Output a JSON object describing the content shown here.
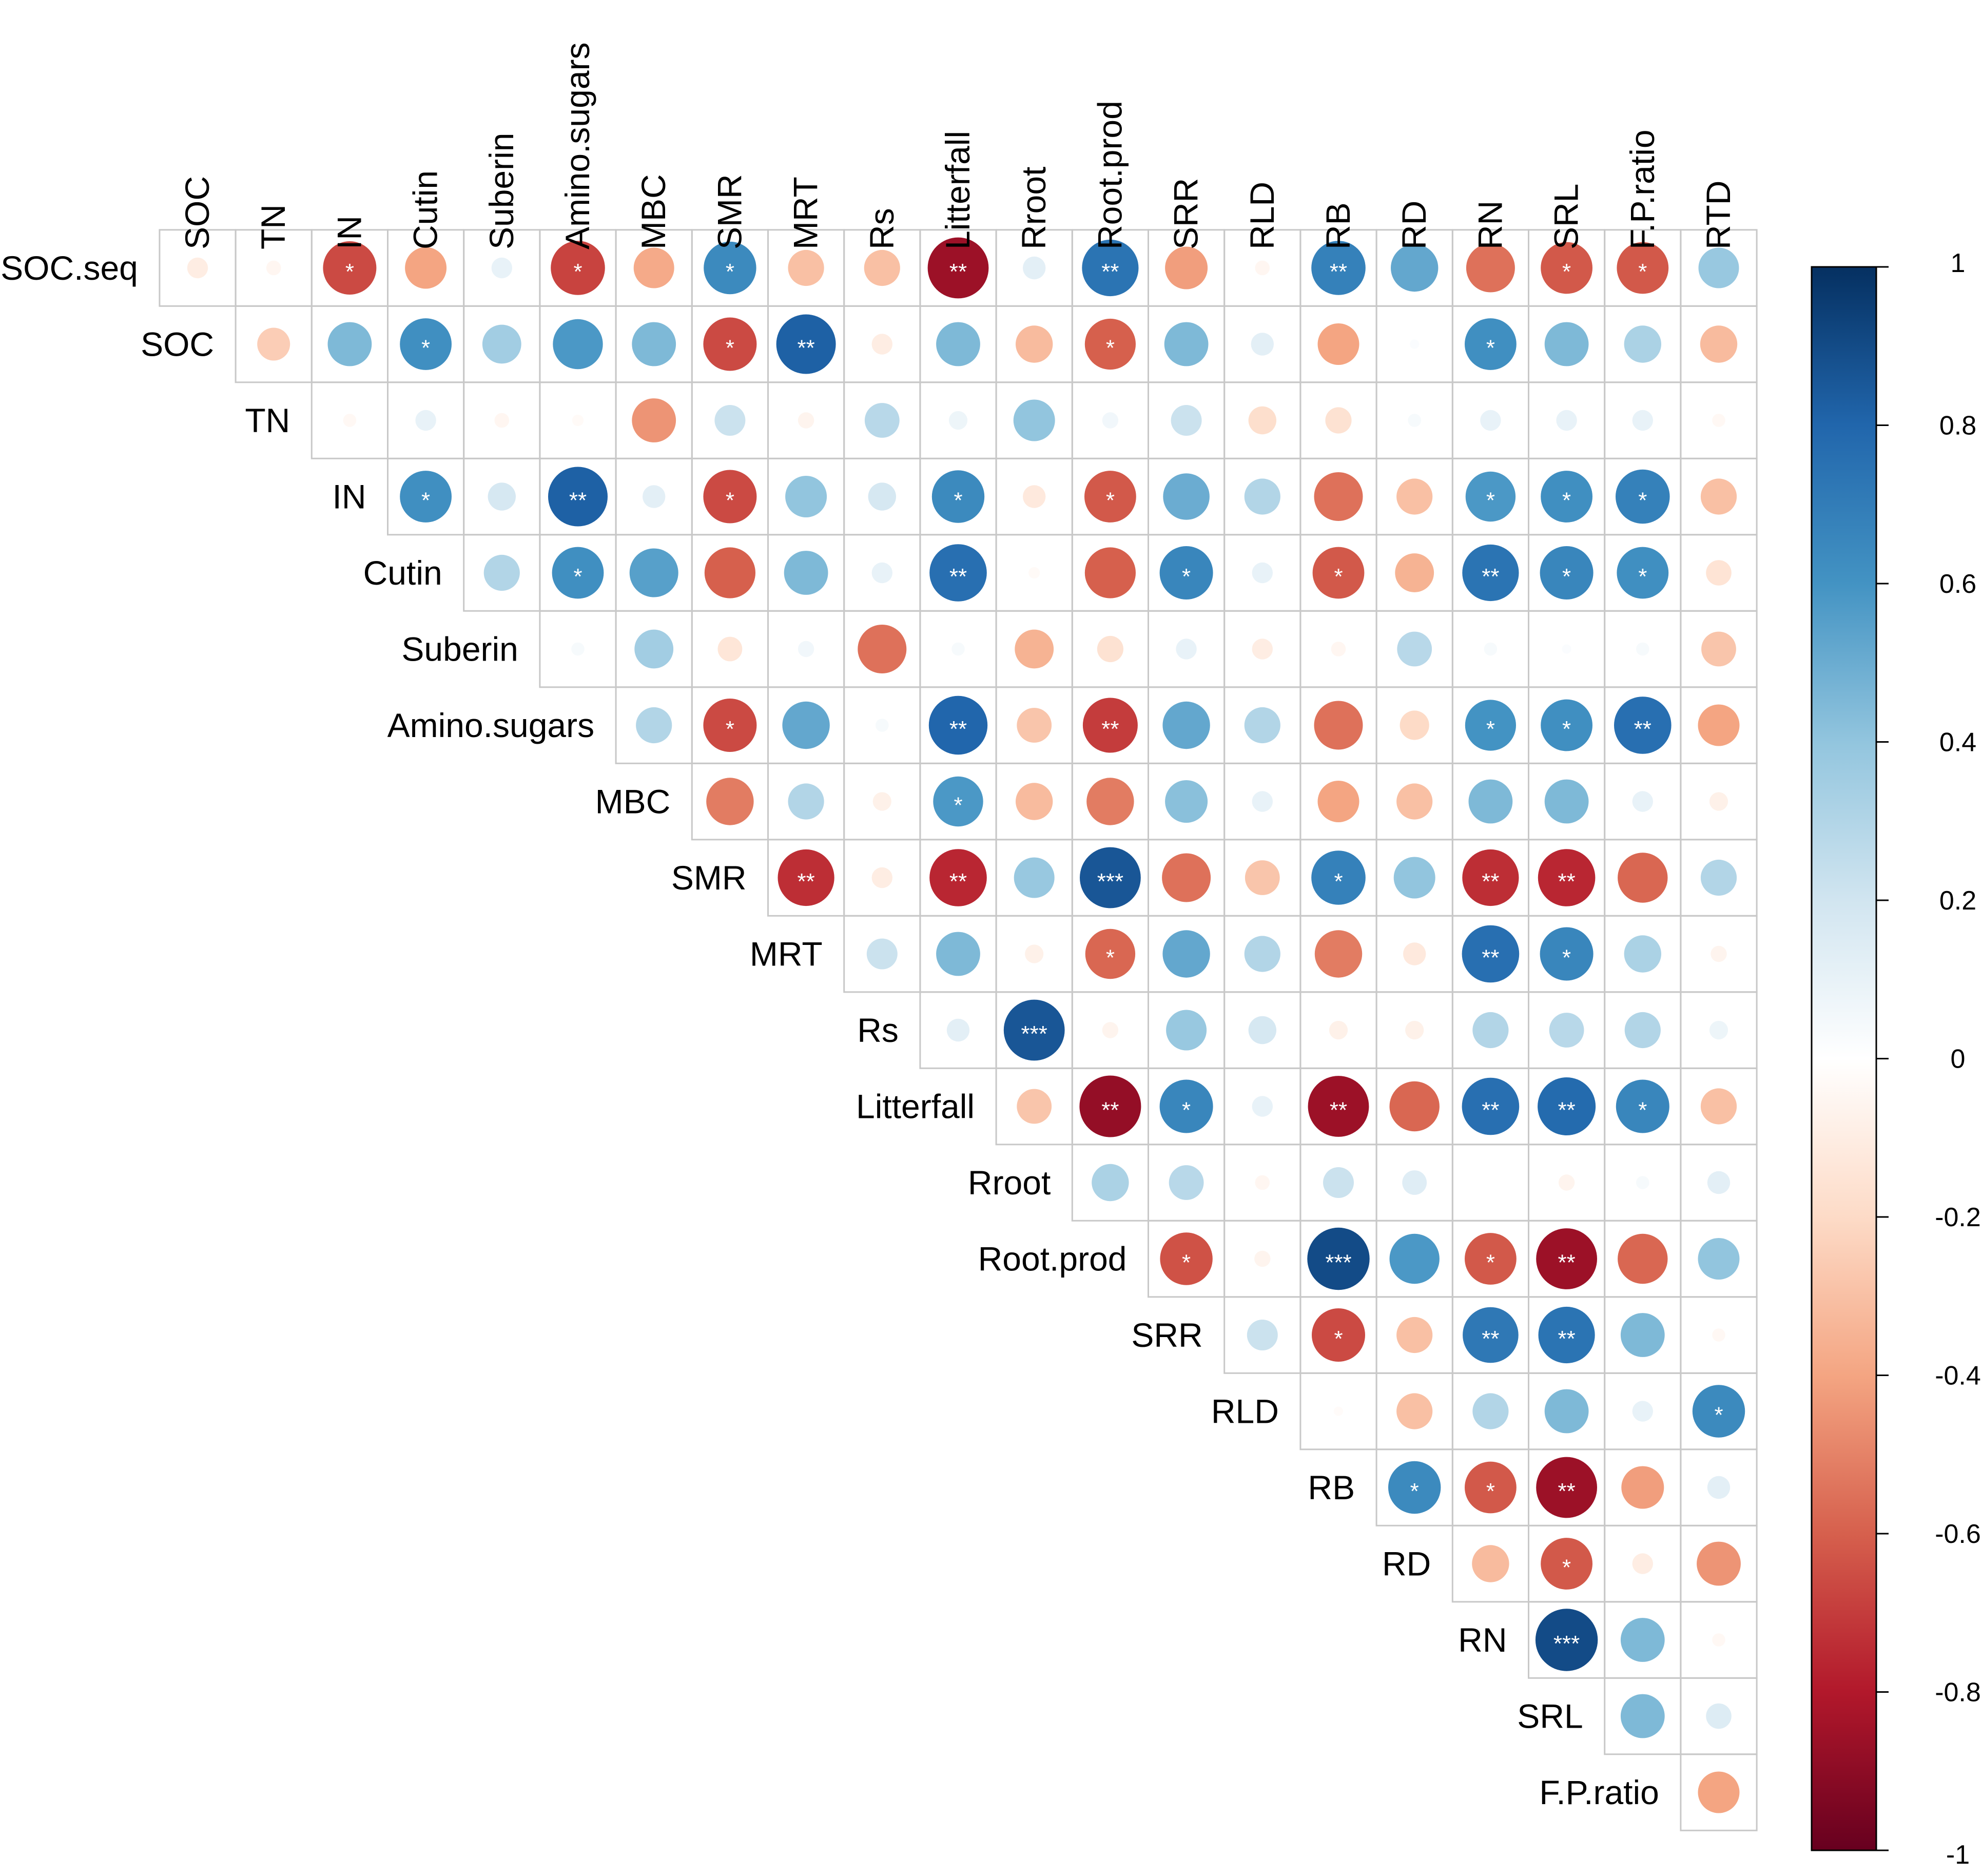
{
  "chart_data": {
    "type": "heatmap",
    "title": "",
    "shape": "upper-triangular correlation matrix (circle glyphs)",
    "rows": [
      "SOC.seq",
      "SOC",
      "TN",
      "IN",
      "Cutin",
      "Suberin",
      "Amino.sugars",
      "MBC",
      "SMR",
      "MRT",
      "Rs",
      "Litterfall",
      "Rroot",
      "Root.prod",
      "SRR",
      "RLD",
      "RB",
      "RD",
      "RN",
      "SRL",
      "F.P.ratio"
    ],
    "columns": [
      "SOC",
      "TN",
      "IN",
      "Cutin",
      "Suberin",
      "Amino.sugars",
      "MBC",
      "SMR",
      "MRT",
      "Rs",
      "Litterfall",
      "Rroot",
      "Root.prod",
      "SRR",
      "RLD",
      "RB",
      "RD",
      "RN",
      "SRL",
      "F.P.ratio",
      "RTD"
    ],
    "values": [
      [
        -0.1,
        -0.05,
        -0.66,
        -0.4,
        0.1,
        -0.68,
        -0.38,
        0.64,
        -0.3,
        -0.3,
        -0.86,
        0.12,
        0.74,
        -0.42,
        -0.05,
        0.68,
        0.52,
        -0.55,
        -0.62,
        -0.62,
        0.38
      ],
      [
        null,
        -0.25,
        0.45,
        0.62,
        0.35,
        0.58,
        0.45,
        -0.66,
        0.82,
        -0.1,
        0.45,
        -0.32,
        -0.6,
        0.45,
        0.12,
        -0.4,
        0.02,
        0.62,
        0.45,
        0.32,
        -0.32
      ],
      [
        null,
        null,
        -0.04,
        0.1,
        -0.05,
        -0.03,
        -0.45,
        0.22,
        -0.06,
        0.28,
        0.08,
        0.4,
        0.06,
        0.22,
        -0.18,
        -0.16,
        0.04,
        0.1,
        0.1,
        0.1,
        -0.04
      ],
      [
        null,
        null,
        null,
        0.62,
        0.18,
        0.82,
        0.12,
        -0.66,
        0.4,
        0.18,
        0.64,
        -0.12,
        -0.62,
        0.5,
        0.3,
        -0.55,
        -0.3,
        0.58,
        0.62,
        0.68,
        -0.3
      ],
      [
        null,
        null,
        null,
        null,
        0.3,
        0.62,
        0.55,
        -0.6,
        0.45,
        0.1,
        0.76,
        -0.03,
        -0.6,
        0.66,
        0.1,
        -0.62,
        -0.35,
        0.74,
        0.66,
        0.62,
        -0.15
      ],
      [
        null,
        null,
        null,
        null,
        null,
        0.04,
        0.35,
        -0.14,
        0.06,
        -0.55,
        0.04,
        -0.35,
        -0.16,
        0.1,
        -0.1,
        -0.05,
        0.28,
        0.04,
        0.02,
        0.04,
        -0.28
      ],
      [
        null,
        null,
        null,
        null,
        null,
        null,
        0.3,
        -0.66,
        0.52,
        0.04,
        0.8,
        -0.28,
        -0.7,
        0.52,
        0.3,
        -0.55,
        -0.2,
        0.6,
        0.62,
        0.76,
        -0.4
      ],
      [
        null,
        null,
        null,
        null,
        null,
        null,
        null,
        -0.52,
        0.3,
        -0.08,
        0.58,
        -0.32,
        -0.52,
        0.42,
        0.1,
        -0.4,
        -0.3,
        0.45,
        0.45,
        0.1,
        -0.08
      ],
      [
        null,
        null,
        null,
        null,
        null,
        null,
        null,
        null,
        -0.74,
        -0.1,
        -0.76,
        0.38,
        0.86,
        -0.55,
        -0.28,
        0.68,
        0.4,
        -0.74,
        -0.76,
        -0.58,
        0.3
      ],
      [
        null,
        null,
        null,
        null,
        null,
        null,
        null,
        null,
        null,
        0.22,
        0.45,
        -0.08,
        -0.58,
        0.52,
        0.3,
        -0.52,
        -0.12,
        0.76,
        0.66,
        0.32,
        -0.06
      ],
      [
        null,
        null,
        null,
        null,
        null,
        null,
        null,
        null,
        null,
        null,
        0.12,
        0.86,
        -0.06,
        0.38,
        0.18,
        -0.08,
        -0.08,
        0.3,
        0.28,
        0.3,
        0.08
      ],
      [
        null,
        null,
        null,
        null,
        null,
        null,
        null,
        null,
        null,
        null,
        null,
        -0.28,
        -0.88,
        0.66,
        0.1,
        -0.86,
        -0.58,
        0.76,
        0.78,
        0.66,
        -0.3
      ],
      [
        null,
        null,
        null,
        null,
        null,
        null,
        null,
        null,
        null,
        null,
        null,
        null,
        0.32,
        0.28,
        -0.05,
        0.22,
        0.14,
        0.0,
        -0.06,
        0.04,
        0.12
      ],
      [
        null,
        null,
        null,
        null,
        null,
        null,
        null,
        null,
        null,
        null,
        null,
        null,
        null,
        -0.64,
        -0.06,
        0.9,
        0.58,
        -0.62,
        -0.86,
        -0.58,
        0.4
      ],
      [
        null,
        null,
        null,
        null,
        null,
        null,
        null,
        null,
        null,
        null,
        null,
        null,
        null,
        null,
        0.22,
        -0.66,
        -0.3,
        0.72,
        0.74,
        0.45,
        -0.04
      ],
      [
        null,
        null,
        null,
        null,
        null,
        null,
        null,
        null,
        null,
        null,
        null,
        null,
        null,
        null,
        null,
        -0.02,
        -0.3,
        0.3,
        0.45,
        0.1,
        0.64
      ],
      [
        null,
        null,
        null,
        null,
        null,
        null,
        null,
        null,
        null,
        null,
        null,
        null,
        null,
        null,
        null,
        null,
        0.64,
        -0.62,
        -0.86,
        -0.42,
        0.12
      ],
      [
        null,
        null,
        null,
        null,
        null,
        null,
        null,
        null,
        null,
        null,
        null,
        null,
        null,
        null,
        null,
        null,
        null,
        -0.32,
        -0.62,
        -0.1,
        -0.45
      ],
      [
        null,
        null,
        null,
        null,
        null,
        null,
        null,
        null,
        null,
        null,
        null,
        null,
        null,
        null,
        null,
        null,
        null,
        null,
        0.9,
        0.45,
        -0.04
      ],
      [
        null,
        null,
        null,
        null,
        null,
        null,
        null,
        null,
        null,
        null,
        null,
        null,
        null,
        null,
        null,
        null,
        null,
        null,
        null,
        0.45,
        0.15
      ],
      [
        null,
        null,
        null,
        null,
        null,
        null,
        null,
        null,
        null,
        null,
        null,
        null,
        null,
        null,
        null,
        null,
        null,
        null,
        null,
        null,
        -0.4
      ]
    ],
    "significance": [
      [
        "",
        "",
        "*",
        "",
        "",
        "*",
        "",
        "*",
        "",
        "",
        "**",
        "",
        "**",
        "",
        "",
        "**",
        "",
        "",
        "*",
        "*",
        ""
      ],
      [
        "",
        "",
        "",
        "*",
        "",
        "",
        "",
        "*",
        "**",
        "",
        "",
        "",
        "*",
        "",
        "",
        "",
        "",
        "*",
        "",
        "",
        ""
      ],
      [
        "",
        "",
        "",
        "",
        "",
        "",
        "",
        "",
        "",
        "",
        "",
        "",
        "",
        "",
        "",
        "",
        "",
        "",
        "",
        "",
        ""
      ],
      [
        "",
        "",
        "",
        "*",
        "",
        "**",
        "",
        "*",
        "",
        "",
        "*",
        "",
        "*",
        "",
        "",
        "",
        "",
        "*",
        "*",
        "*",
        ""
      ],
      [
        "",
        "",
        "",
        "",
        "",
        "*",
        "",
        "",
        "",
        "",
        "**",
        "",
        "",
        "*",
        "",
        "*",
        "",
        "**",
        "*",
        "*",
        ""
      ],
      [
        "",
        "",
        "",
        "",
        "",
        "",
        "",
        "",
        "",
        "",
        "",
        "",
        "",
        "",
        "",
        "",
        "",
        "",
        "",
        "",
        ""
      ],
      [
        "",
        "",
        "",
        "",
        "",
        "",
        "",
        "*",
        "",
        "",
        "**",
        "",
        "**",
        "",
        "",
        "",
        "",
        "*",
        "*",
        "**",
        ""
      ],
      [
        "",
        "",
        "",
        "",
        "",
        "",
        "",
        "",
        "",
        "",
        "*",
        "",
        "",
        "",
        "",
        "",
        "",
        "",
        "",
        "",
        ""
      ],
      [
        "",
        "",
        "",
        "",
        "",
        "",
        "",
        "",
        "**",
        "",
        "**",
        "",
        "***",
        "",
        "",
        "*",
        "",
        "**",
        "**",
        "",
        ""
      ],
      [
        "",
        "",
        "",
        "",
        "",
        "",
        "",
        "",
        "",
        "",
        "",
        "",
        "*",
        "",
        "",
        "",
        "",
        "**",
        "*",
        "",
        ""
      ],
      [
        "",
        "",
        "",
        "",
        "",
        "",
        "",
        "",
        "",
        "",
        "",
        "***",
        "",
        "",
        "",
        "",
        "",
        "",
        "",
        "",
        ""
      ],
      [
        "",
        "",
        "",
        "",
        "",
        "",
        "",
        "",
        "",
        "",
        "",
        "",
        "**",
        "*",
        "",
        "**",
        "",
        "**",
        "**",
        "*",
        ""
      ],
      [
        "",
        "",
        "",
        "",
        "",
        "",
        "",
        "",
        "",
        "",
        "",
        "",
        "",
        "",
        "",
        "",
        "",
        "",
        "",
        "",
        ""
      ],
      [
        "",
        "",
        "",
        "",
        "",
        "",
        "",
        "",
        "",
        "",
        "",
        "",
        "",
        "*",
        "",
        "***",
        "",
        "*",
        "**",
        "",
        ""
      ],
      [
        "",
        "",
        "",
        "",
        "",
        "",
        "",
        "",
        "",
        "",
        "",
        "",
        "",
        "",
        "",
        "*",
        "",
        "**",
        "**",
        "",
        ""
      ],
      [
        "",
        "",
        "",
        "",
        "",
        "",
        "",
        "",
        "",
        "",
        "",
        "",
        "",
        "",
        "",
        "",
        "",
        "",
        "",
        "",
        "*"
      ],
      [
        "",
        "",
        "",
        "",
        "",
        "",
        "",
        "",
        "",
        "",
        "",
        "",
        "",
        "",
        "",
        "",
        "*",
        "*",
        "**",
        "",
        ""
      ],
      [
        "",
        "",
        "",
        "",
        "",
        "",
        "",
        "",
        "",
        "",
        "",
        "",
        "",
        "",
        "",
        "",
        "",
        "",
        "*",
        "",
        ""
      ],
      [
        "",
        "",
        "",
        "",
        "",
        "",
        "",
        "",
        "",
        "",
        "",
        "",
        "",
        "",
        "",
        "",
        "",
        "",
        "***",
        "",
        ""
      ],
      [
        "",
        "",
        "",
        "",
        "",
        "",
        "",
        "",
        "",
        "",
        "",
        "",
        "",
        "",
        "",
        "",
        "",
        "",
        "",
        "",
        ""
      ],
      [
        "",
        "",
        "",
        "",
        "",
        "",
        "",
        "",
        "",
        "",
        "",
        "",
        "",
        "",
        "",
        "",
        "",
        "",
        "",
        "",
        ""
      ]
    ],
    "colorbar": {
      "range": [
        -1,
        1
      ],
      "ticks": [
        1,
        0.8,
        0.6,
        0.4,
        0.2,
        0,
        -0.2,
        -0.4,
        -0.6,
        -0.8,
        -1
      ],
      "tick_labels": [
        "1",
        "0.8",
        "0.6",
        "0.4",
        "0.2",
        "0",
        "-0.2",
        "-0.4",
        "-0.6",
        "-0.8",
        "-1"
      ],
      "colors": [
        "#67001F",
        "#B2182B",
        "#D6604D",
        "#F4A582",
        "#FDDBC7",
        "#FFFFFF",
        "#D1E5F0",
        "#92C5DE",
        "#4393C3",
        "#2166AC",
        "#053061"
      ]
    },
    "legend_position": "right"
  }
}
